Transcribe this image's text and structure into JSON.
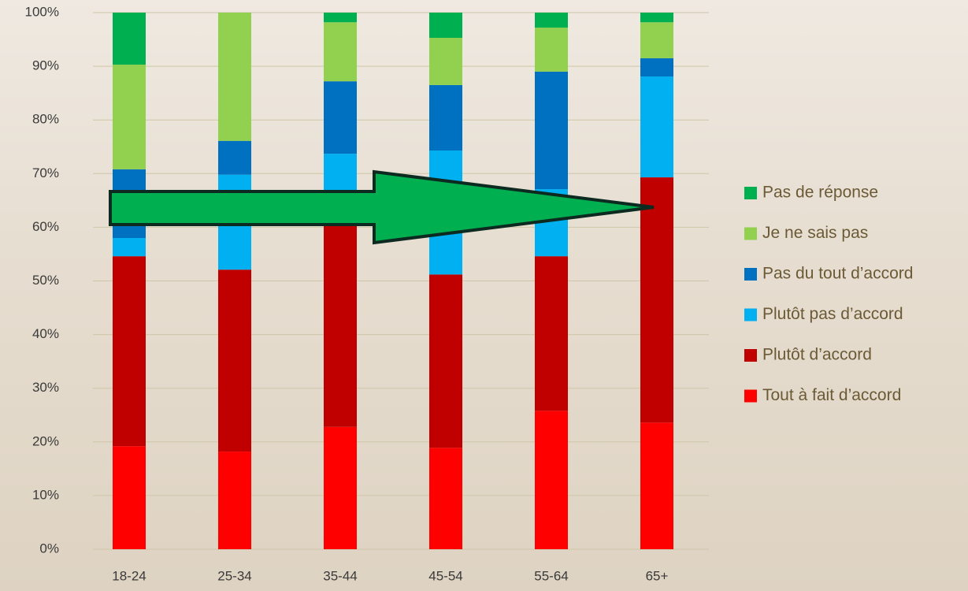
{
  "chart_data": {
    "type": "stacked_bar",
    "categories": [
      "18-24",
      "25-34",
      "35-44",
      "45-54",
      "55-64",
      "65+"
    ],
    "series": [
      {
        "name": "Tout à fait d’accord",
        "color": "#ff0000",
        "values": [
          19.2,
          18.2,
          22.8,
          18.9,
          25.8,
          23.6
        ]
      },
      {
        "name": "Plutôt d’accord",
        "color": "#c00000",
        "values": [
          35.4,
          33.9,
          38.2,
          32.3,
          28.8,
          45.7
        ]
      },
      {
        "name": "Plutôt pas d’accord",
        "color": "#00b0f0",
        "values": [
          3.4,
          17.7,
          12.7,
          23.1,
          12.5,
          18.8
        ]
      },
      {
        "name": "Pas du tout d’accord",
        "color": "#0070c0",
        "values": [
          12.8,
          6.3,
          13.5,
          12.2,
          21.9,
          3.4
        ]
      },
      {
        "name": "Je ne sais pas",
        "color": "#92d050",
        "values": [
          19.5,
          23.9,
          11.0,
          8.8,
          8.2,
          6.7
        ]
      },
      {
        "name": "Pas de réponse",
        "color": "#00b050",
        "values": [
          9.7,
          0,
          1.8,
          4.7,
          2.8,
          1.8
        ]
      }
    ],
    "ylim": [
      0,
      100
    ],
    "yticks": [
      {
        "value": 0,
        "label": "0%"
      },
      {
        "value": 10,
        "label": "10%"
      },
      {
        "value": 20,
        "label": "20%"
      },
      {
        "value": 30,
        "label": "30%"
      },
      {
        "value": 40,
        "label": "40%"
      },
      {
        "value": 50,
        "label": "50%"
      },
      {
        "value": 60,
        "label": "60%"
      },
      {
        "value": 70,
        "label": "70%"
      },
      {
        "value": 80,
        "label": "80%"
      },
      {
        "value": 90,
        "label": "90%"
      },
      {
        "value": 100,
        "label": "100%"
      }
    ],
    "grid": true,
    "legend_position": "right"
  }
}
